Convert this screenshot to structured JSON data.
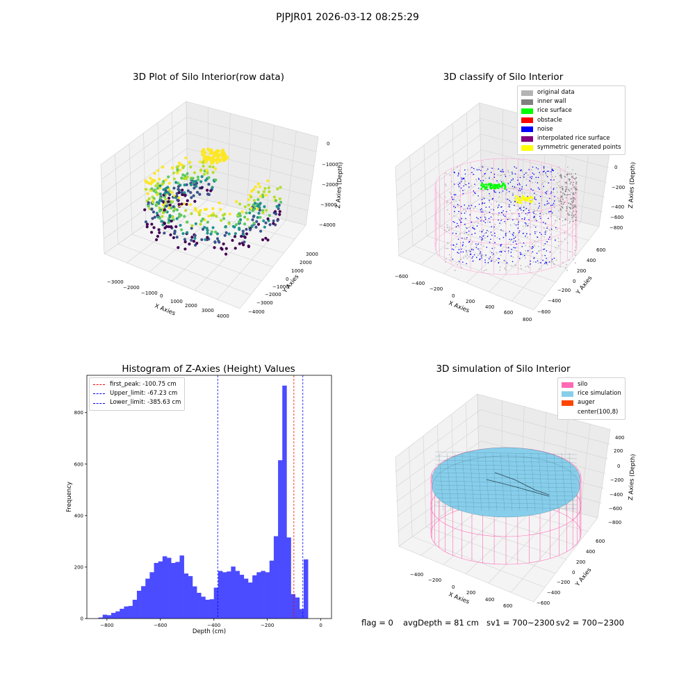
{
  "figure_title": "PJPJR01 2026-03-12 08:25:29",
  "panels": {
    "raw": {
      "title": "3D Plot of Silo Interior(row data)",
      "xlabel": "X Axies",
      "ylabel": "Y Axies",
      "zlabel": "Z Axies (Depth)",
      "xticks": [
        "−3000",
        "−2000",
        "−1000",
        "0",
        "1000",
        "2000",
        "3000",
        "4000"
      ],
      "yticks": [
        "3000",
        "2000",
        "1000",
        "0",
        "−1000",
        "−2000",
        "−3000",
        "−4000"
      ],
      "zticks": [
        "0",
        "−1000",
        "−2000",
        "−3000",
        "−4000"
      ]
    },
    "classify": {
      "title": "3D classify of Silo Interior",
      "xlabel": "X Axies",
      "ylabel": "Y Axies",
      "zlabel": "Z Axies (Depth)",
      "xticks": [
        "−600",
        "−400",
        "−200",
        "0",
        "200",
        "400",
        "600",
        "800"
      ],
      "yticks": [
        "600",
        "400",
        "200",
        "0",
        "−200",
        "−400",
        "−600"
      ],
      "zticks": [
        "200",
        "0",
        "−200",
        "−400",
        "−600",
        "−800"
      ],
      "legend": [
        {
          "label": "original data",
          "color": "#b4b4b4"
        },
        {
          "label": "inner wall",
          "color": "#808080"
        },
        {
          "label": "rice surface",
          "color": "#00ff00"
        },
        {
          "label": "obstacle",
          "color": "#ff0000"
        },
        {
          "label": "noise",
          "color": "#0000ff"
        },
        {
          "label": "interpolated rice surface",
          "color": "#800080"
        },
        {
          "label": "symmetric generated points",
          "color": "#ffff00"
        }
      ]
    },
    "histogram": {
      "title": "Histogram of Z-Axies (Height) Values",
      "xlabel": "Depth (cm)",
      "ylabel": "Frequency",
      "legend": [
        {
          "label": "first_peak: -100.75 cm",
          "color": "#ff0000"
        },
        {
          "label": "Upper_limit: -67.23 cm",
          "color": "#0000ff"
        },
        {
          "label": "Lower_limit: -385.63 cm",
          "color": "#0000ff"
        }
      ]
    },
    "simulation": {
      "title": "3D simulation of Silo Interior",
      "xlabel": "X Axies",
      "ylabel": "Y Axies",
      "zlabel": "Z Axies (Depth)",
      "xticks": [
        "−400",
        "−200",
        "0",
        "200",
        "400",
        "600"
      ],
      "yticks": [
        "600",
        "400",
        "200",
        "0",
        "−200",
        "−400",
        "−600"
      ],
      "zticks": [
        "400",
        "200",
        "0",
        "−200",
        "−400",
        "−600",
        "−800"
      ],
      "legend": [
        {
          "label": "silo",
          "color": "#ff69b4"
        },
        {
          "label": "rice simulation",
          "color": "#87ceeb"
        },
        {
          "label": "auger",
          "color": "#ff4500"
        },
        {
          "label": "center(100,8)",
          "color": "#ffffff"
        }
      ]
    }
  },
  "status": {
    "flag": "flag = 0",
    "avg_depth": "avgDepth = 81 cm",
    "sv1": "sv1 = 700~2300",
    "sv2": "sv2 = 700~2300"
  },
  "chart_data": [
    {
      "type": "scatter",
      "title": "3D Plot of Silo Interior(row data)",
      "xlabel": "X Axies",
      "ylabel": "Y Axies",
      "zlabel": "Z Axies (Depth)",
      "xlim": [
        -3500,
        4500
      ],
      "ylim": [
        -4500,
        3500
      ],
      "zlim": [
        -4500,
        0
      ],
      "colormap": "viridis"
    },
    {
      "type": "scatter",
      "title": "3D classify of Silo Interior",
      "xlim": [
        -650,
        850
      ],
      "ylim": [
        -650,
        650
      ],
      "zlim": [
        -900,
        300
      ],
      "series": [
        {
          "name": "original data"
        },
        {
          "name": "inner wall"
        },
        {
          "name": "rice surface"
        },
        {
          "name": "obstacle"
        },
        {
          "name": "noise"
        },
        {
          "name": "interpolated rice surface"
        },
        {
          "name": "symmetric generated points"
        }
      ]
    },
    {
      "type": "bar",
      "title": "Histogram of Z-Axies (Height) Values",
      "xlabel": "Depth (cm)",
      "ylabel": "Frequency",
      "xlim": [
        -875,
        40
      ],
      "ylim": [
        0,
        945
      ],
      "xticks": [
        -800,
        -600,
        -400,
        -200,
        0
      ],
      "yticks": [
        0,
        200,
        400,
        600,
        800
      ],
      "bin_start": -832,
      "bin_width": 16.0,
      "values": [
        4,
        15,
        13,
        22,
        28,
        38,
        47,
        49,
        73,
        108,
        126,
        155,
        180,
        216,
        222,
        242,
        236,
        216,
        220,
        245,
        175,
        165,
        125,
        100,
        85,
        73,
        75,
        120,
        185,
        180,
        183,
        202,
        185,
        170,
        155,
        140,
        168,
        180,
        185,
        180,
        225,
        320,
        615,
        905,
        315,
        95,
        82,
        37,
        230
      ],
      "vlines": [
        {
          "label": "first_peak: -100.75 cm",
          "x": -100.75,
          "color": "#ff0000"
        },
        {
          "label": "Upper_limit: -67.23 cm",
          "x": -67.23,
          "color": "#0000ff"
        },
        {
          "label": "Lower_limit: -385.63 cm",
          "x": -385.63,
          "color": "#0000ff"
        }
      ],
      "bar_color": "#4b4bff",
      "legend_position": "upper-left"
    },
    {
      "type": "surface",
      "title": "3D simulation of Silo Interior",
      "xlim": [
        -550,
        750
      ],
      "ylim": [
        -700,
        700
      ],
      "zlim": [
        -900,
        450
      ],
      "series": [
        {
          "name": "silo"
        },
        {
          "name": "rice simulation"
        },
        {
          "name": "auger"
        },
        {
          "name": "center(100,8)"
        }
      ]
    }
  ]
}
